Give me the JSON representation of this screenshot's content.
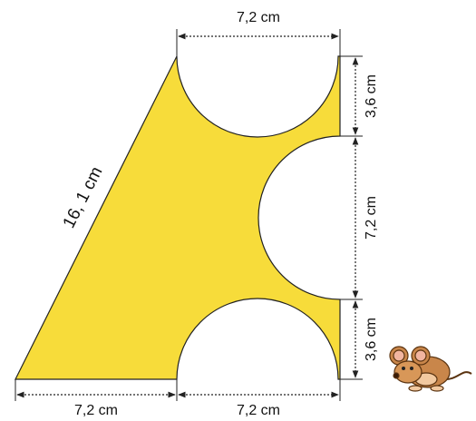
{
  "labels": {
    "top": "7,2 cm",
    "right_top": "3,6 cm",
    "right_middle": "7,2 cm",
    "right_bottom": "3,6 cm",
    "bottom_left": "7,2 cm",
    "bottom_right": "7,2 cm",
    "slant": "16, 1 cm"
  }
}
